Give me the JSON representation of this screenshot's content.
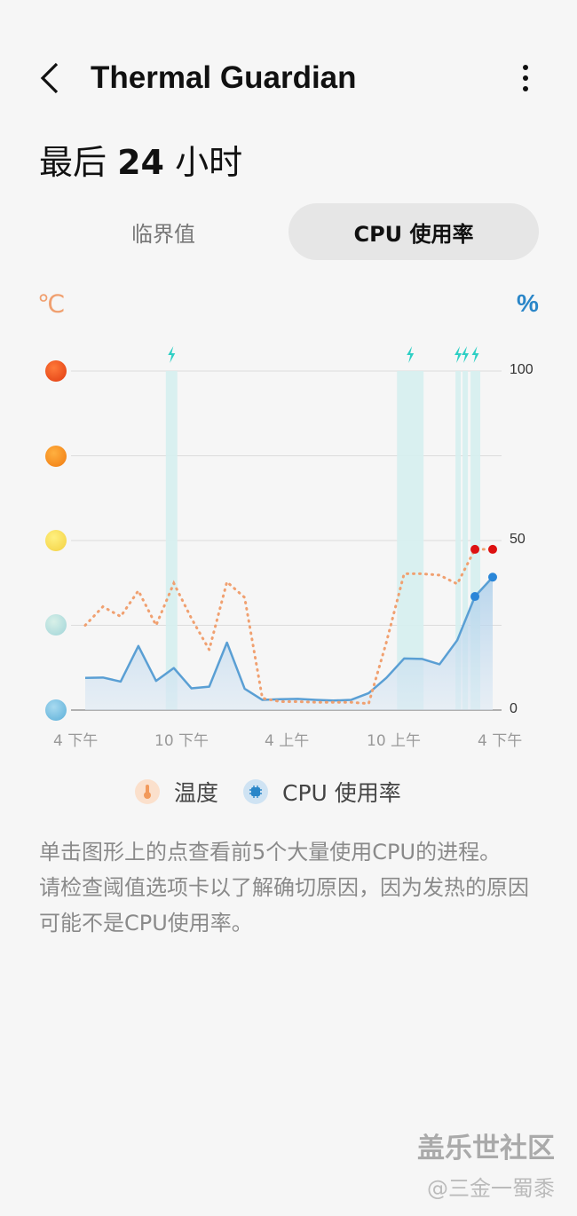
{
  "header": {
    "title": "Thermal Guardian",
    "back_icon": "chevron-left",
    "more_icon": "more-vertical"
  },
  "period": {
    "prefix": "最后",
    "number": "24",
    "suffix": "小时"
  },
  "tabs": [
    {
      "label": "临界值",
      "selected": false
    },
    {
      "label": "CPU 使用率",
      "selected": true
    }
  ],
  "chart_data": {
    "type": "line",
    "left_unit": "℃",
    "right_unit": "%",
    "left_axis_icons": [
      "very-hot-face",
      "hot-face",
      "uneasy-face",
      "comfortable-face",
      "cool-face"
    ],
    "right_ticks": [
      "100",
      "50",
      "0"
    ],
    "ylim": [
      0,
      100
    ],
    "x_tick_labels": [
      "4 下午",
      "10 下午",
      "4 上午",
      "10 上午",
      "4 下午"
    ],
    "grid": true,
    "series": [
      {
        "name": "温度",
        "style": "dotted",
        "color": "#f0a070",
        "values": [
          25,
          30.5,
          27.6,
          35.2,
          25,
          37.4,
          27,
          17.8,
          37.8,
          33.2,
          3.5,
          2.5,
          2.5,
          2.3,
          2.3,
          2.3,
          1.9,
          20,
          40.2,
          40.2,
          39.8,
          37.2,
          47.4,
          47.4
        ],
        "highlight_points": [
          22,
          23
        ],
        "highlight_color": "#dd1111"
      },
      {
        "name": "CPU 使用率",
        "style": "solid-area",
        "color": "#5a9fd4",
        "values": [
          9.5,
          9.6,
          8.4,
          18.9,
          8.6,
          12.4,
          6.4,
          6.9,
          19.9,
          6.3,
          3.0,
          3.2,
          3.3,
          3.0,
          2.8,
          3.0,
          5.0,
          9.5,
          15.2,
          15.1,
          13.5,
          20.6,
          33.5,
          39.2
        ],
        "highlight_points": [
          22,
          23
        ],
        "highlight_color": "#2a86d8"
      }
    ],
    "overheat_bands_hours": [
      [
        4.55,
        5.2
      ],
      [
        17.6,
        19.1
      ],
      [
        20.9,
        21.2
      ],
      [
        21.3,
        21.6
      ],
      [
        21.75,
        22.3
      ]
    ],
    "overheat_icon": "lightning",
    "band_color": "#d6f0f0",
    "legend": [
      {
        "label": "温度",
        "icon": "thermometer",
        "color": "#f29a5c"
      },
      {
        "label": "CPU 使用率",
        "icon": "cpu-chip",
        "color": "#2a86c8"
      }
    ],
    "legend_position": "bottom"
  },
  "description": [
    "单击图形上的点查看前5个大量使用CPU的进程。",
    "请检查阈值选项卡以了解确切原因，因为发热的原因可能不是CPU使用率。"
  ],
  "watermark": {
    "line1": "盖乐世社区",
    "line2": "@三金一蜀黍"
  }
}
